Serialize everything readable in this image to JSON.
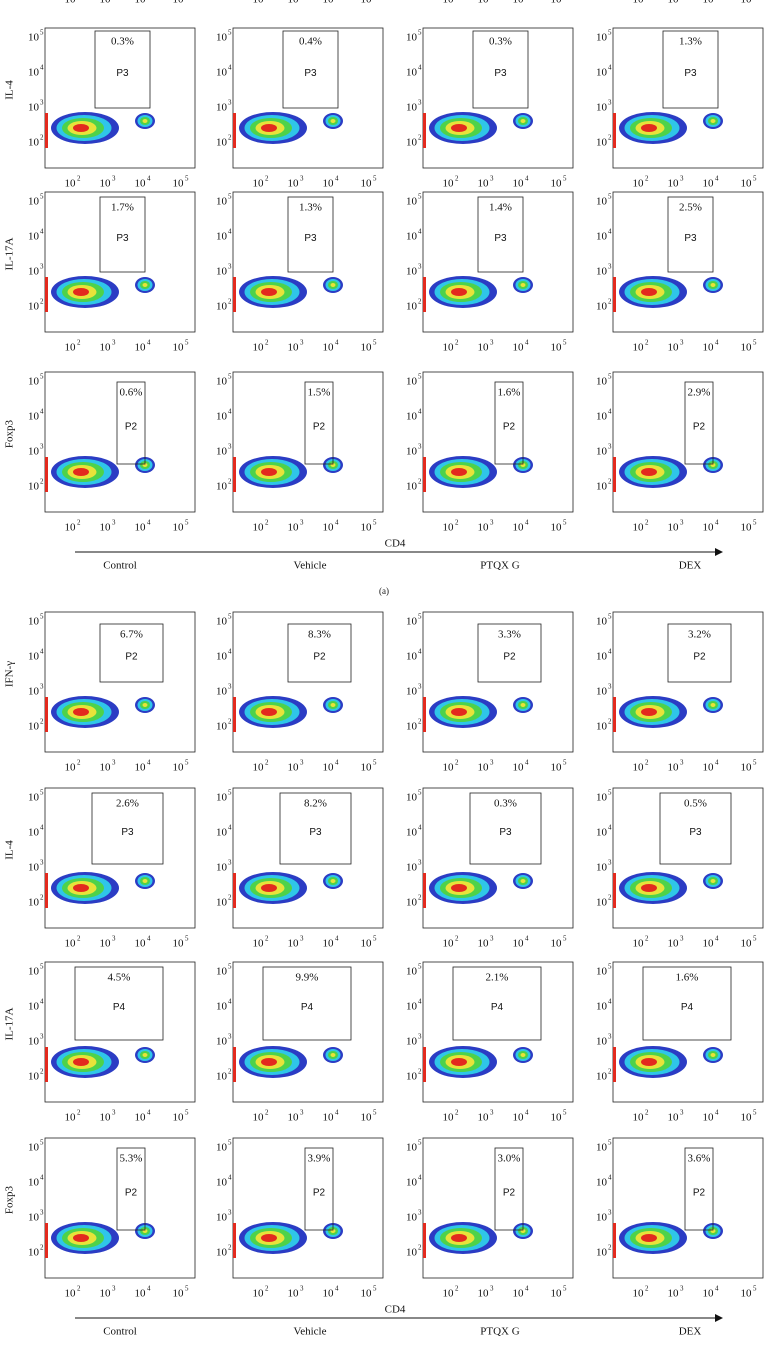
{
  "tick_base": "10",
  "tick_exponents": [
    "2",
    "3",
    "4",
    "5"
  ],
  "panels": [
    {
      "label": "(a)",
      "x_axis_label": "CD4",
      "groups": [
        "Control",
        "Vehicle",
        "PTQX G",
        "DEX"
      ],
      "rows": [
        {
          "marker": "IL-4",
          "plots": [
            {
              "percent": "0.3%",
              "gate": "P3"
            },
            {
              "percent": "0.4%",
              "gate": "P3"
            },
            {
              "percent": "0.3%",
              "gate": "P3"
            },
            {
              "percent": "1.3%",
              "gate": "P3"
            }
          ]
        },
        {
          "marker": "IL-17A",
          "plots": [
            {
              "percent": "1.7%",
              "gate": "P3"
            },
            {
              "percent": "1.3%",
              "gate": "P3"
            },
            {
              "percent": "1.4%",
              "gate": "P3"
            },
            {
              "percent": "2.5%",
              "gate": "P3"
            }
          ]
        },
        {
          "marker": "Foxp3",
          "plots": [
            {
              "percent": "0.6%",
              "gate": "P2"
            },
            {
              "percent": "1.5%",
              "gate": "P2"
            },
            {
              "percent": "1.6%",
              "gate": "P2"
            },
            {
              "percent": "2.9%",
              "gate": "P2"
            }
          ]
        }
      ]
    },
    {
      "x_axis_label": "CD4",
      "groups": [
        "Control",
        "Vehicle",
        "PTQX G",
        "DEX"
      ],
      "rows": [
        {
          "marker": "IFN-γ",
          "plots": [
            {
              "percent": "6.7%",
              "gate": "P2"
            },
            {
              "percent": "8.3%",
              "gate": "P2"
            },
            {
              "percent": "3.3%",
              "gate": "P2"
            },
            {
              "percent": "3.2%",
              "gate": "P2"
            }
          ]
        },
        {
          "marker": "IL-4",
          "plots": [
            {
              "percent": "2.6%",
              "gate": "P3"
            },
            {
              "percent": "8.2%",
              "gate": "P3"
            },
            {
              "percent": "0.3%",
              "gate": "P3"
            },
            {
              "percent": "0.5%",
              "gate": "P3"
            }
          ]
        },
        {
          "marker": "IL-17A",
          "plots": [
            {
              "percent": "4.5%",
              "gate": "P4"
            },
            {
              "percent": "9.9%",
              "gate": "P4"
            },
            {
              "percent": "2.1%",
              "gate": "P4"
            },
            {
              "percent": "1.6%",
              "gate": "P4"
            }
          ]
        },
        {
          "marker": "Foxp3",
          "plots": [
            {
              "percent": "5.3%",
              "gate": "P2"
            },
            {
              "percent": "3.9%",
              "gate": "P2"
            },
            {
              "percent": "3.0%",
              "gate": "P2"
            },
            {
              "percent": "3.6%",
              "gate": "P2"
            }
          ]
        }
      ]
    }
  ]
}
